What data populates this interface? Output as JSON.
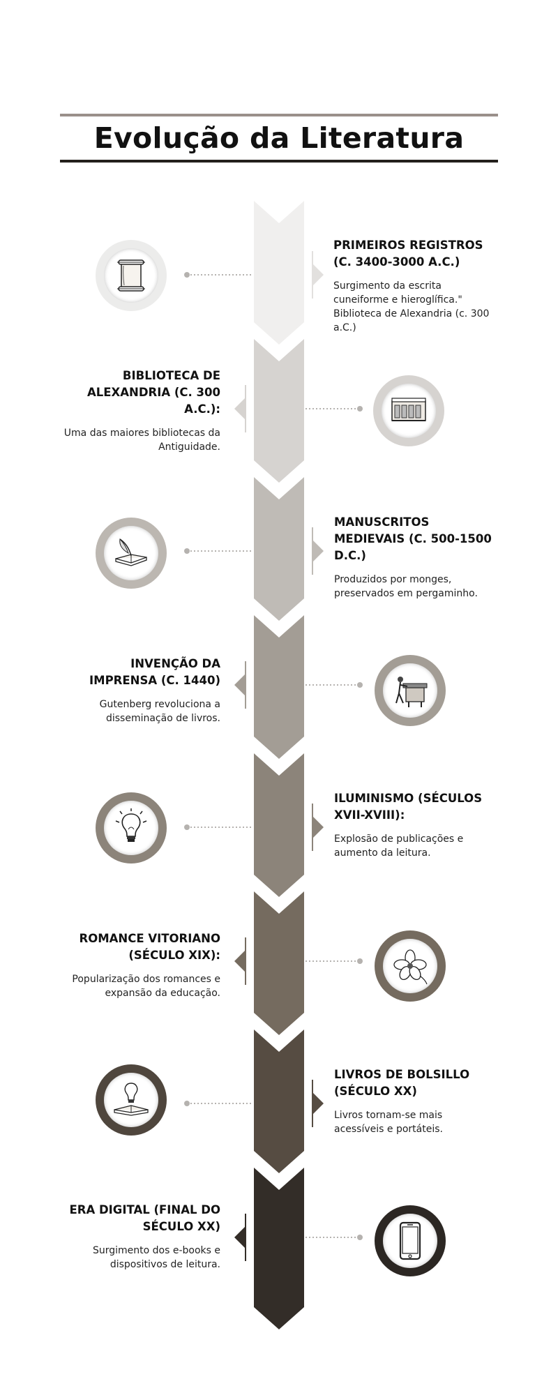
{
  "title": "Evolução da Literatura",
  "colors": {
    "rule_top": "#9a908a",
    "rule_bottom": "#231f1c",
    "dots": "#b5b2af",
    "segments": [
      "#f0efee",
      "#d6d3d0",
      "#bfbbb6",
      "#a39d95",
      "#8c847a",
      "#756b5f",
      "#564c42",
      "#332d28"
    ]
  },
  "events": [
    {
      "title": "PRIMEIROS REGISTROS (C. 3400-3000 A.C.)",
      "description": "Surgimento da escrita cuneiforme e hieroglífica.\" Biblioteca de Alexandria (c. 300 a.C.)",
      "icon": "scroll-icon",
      "side": "right"
    },
    {
      "title": "BIBLIOTECA DE ALEXANDRIA (C. 300 A.C.):",
      "description": "Uma das maiores bibliotecas da Antiguidade.",
      "icon": "library-relief-icon",
      "side": "left"
    },
    {
      "title": "MANUSCRITOS MEDIEVAIS (C. 500-1500 D.C.)",
      "description": "Produzidos por monges, preservados em pergaminho.",
      "icon": "quill-book-icon",
      "side": "right"
    },
    {
      "title": "INVENÇÃO DA IMPRENSA (C. 1440)",
      "description": "Gutenberg revoluciona a disseminação de livros.",
      "icon": "printing-press-icon",
      "side": "left"
    },
    {
      "title": "ILUMINISMO (SÉCULOS XVII-XVIII):",
      "description": "Explosão de publicações e aumento da leitura.",
      "icon": "lightbulb-icon",
      "side": "right"
    },
    {
      "title": "ROMANCE VITORIANO (SÉCULO XIX):",
      "description": "Popularização dos romances e expansão da educação.",
      "icon": "flower-icon",
      "side": "left"
    },
    {
      "title": "LIVROS DE BOLSILLO (SÉCULO XX)",
      "description": "Livros tornam-se mais acessíveis e portáteis.",
      "icon": "book-lightbulb-icon",
      "side": "right"
    },
    {
      "title": "ERA DIGITAL (FINAL DO SÉCULO XX)",
      "description": "Surgimento dos e-books e dispositivos de leitura.",
      "icon": "smartphone-icon",
      "side": "left"
    }
  ]
}
